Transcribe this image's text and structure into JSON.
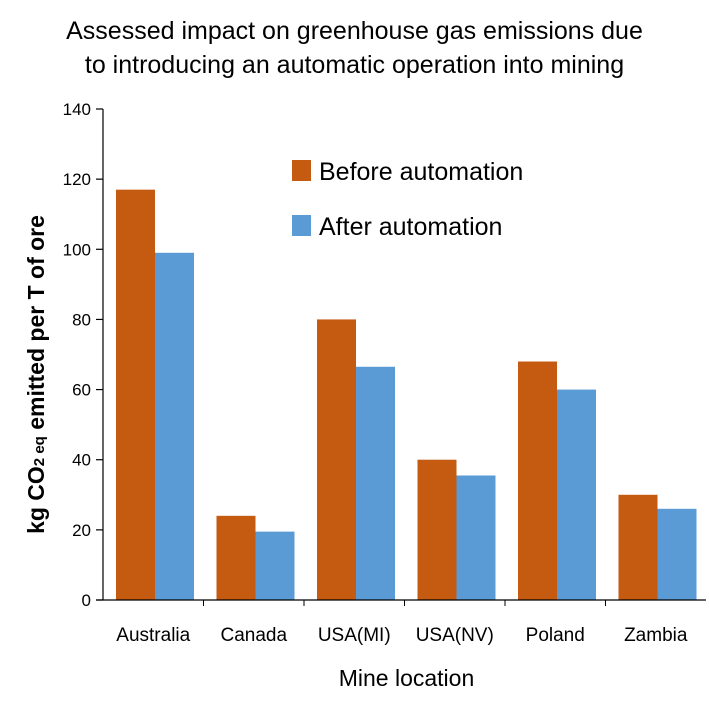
{
  "chart_data": {
    "type": "bar",
    "title_lines": [
      "Assessed impact on greenhouse gas emissions due",
      "to introducing an automatic operation into mining"
    ],
    "xlabel": "Mine location",
    "ylabel": "kg CO2 eq emitted per T of ore",
    "ylabel_parts": {
      "before": "kg CO",
      "sub": "2 eq",
      "after": " emitted per T of ore"
    },
    "categories": [
      "Australia",
      "Canada",
      "USA(MI)",
      "USA(NV)",
      "Poland",
      "Zambia"
    ],
    "series": [
      {
        "name": "Before automation",
        "color": "#C55A11",
        "values": [
          117,
          24,
          80,
          40,
          68,
          30
        ]
      },
      {
        "name": "After automation",
        "color": "#5B9BD5",
        "values": [
          99,
          19.5,
          66.5,
          35.5,
          60,
          26
        ]
      }
    ],
    "ylim": [
      0,
      140
    ],
    "yticks": [
      0,
      20,
      40,
      60,
      80,
      100,
      120,
      140
    ],
    "grid": false,
    "legend_position": "top-right"
  }
}
